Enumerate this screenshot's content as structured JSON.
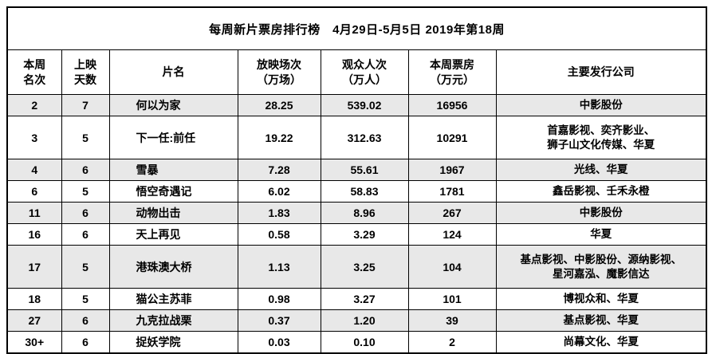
{
  "title": "每周新片票房排行榜　4月29日-5月5日 2019年第18周",
  "colors": {
    "background": "#ffffff",
    "shaded_row_bg": "#e8e8e8",
    "border": "#000000",
    "text": "#000000"
  },
  "columns": [
    {
      "label": "本周\n名次"
    },
    {
      "label": "上映\n天数"
    },
    {
      "label": "片名"
    },
    {
      "label": "放映场次\n（万场）"
    },
    {
      "label": "观众人次\n（万人）"
    },
    {
      "label": "本周票房\n（万元）"
    },
    {
      "label": "主要发行公司"
    }
  ],
  "table": {
    "rows": [
      {
        "rank": "2",
        "days": "7",
        "film": "何以为家",
        "screenings": "28.25",
        "audience": "539.02",
        "box_office": "16956",
        "distributors": "中影股份",
        "shaded": true,
        "tall": false
      },
      {
        "rank": "3",
        "days": "5",
        "film": "下一任:前任",
        "screenings": "19.22",
        "audience": "312.63",
        "box_office": "10291",
        "distributors": "首嘉影视、奕齐影业、\n狮子山文化传媒、华夏",
        "shaded": false,
        "tall": true
      },
      {
        "rank": "4",
        "days": "6",
        "film": "雪暴",
        "screenings": "7.28",
        "audience": "55.61",
        "box_office": "1967",
        "distributors": "光线、华夏",
        "shaded": true,
        "tall": false
      },
      {
        "rank": "6",
        "days": "5",
        "film": "悟空奇遇记",
        "screenings": "6.02",
        "audience": "58.83",
        "box_office": "1781",
        "distributors": "鑫岳影视、壬禾永橙",
        "shaded": false,
        "tall": false
      },
      {
        "rank": "11",
        "days": "6",
        "film": "动物出击",
        "screenings": "1.83",
        "audience": "8.96",
        "box_office": "267",
        "distributors": "中影股份",
        "shaded": true,
        "tall": false
      },
      {
        "rank": "16",
        "days": "6",
        "film": "天上再见",
        "screenings": "0.58",
        "audience": "3.29",
        "box_office": "124",
        "distributors": "华夏",
        "shaded": false,
        "tall": false
      },
      {
        "rank": "17",
        "days": "5",
        "film": "港珠澳大桥",
        "screenings": "1.13",
        "audience": "3.25",
        "box_office": "104",
        "distributors": "基点影视、中影股份、源纳影视、\n星河嘉泓、魔影信达",
        "shaded": true,
        "tall": true
      },
      {
        "rank": "18",
        "days": "5",
        "film": "猫公主苏菲",
        "screenings": "0.98",
        "audience": "3.27",
        "box_office": "101",
        "distributors": "博视众和、华夏",
        "shaded": false,
        "tall": false
      },
      {
        "rank": "27",
        "days": "6",
        "film": "九克拉战栗",
        "screenings": "0.37",
        "audience": "1.20",
        "box_office": "39",
        "distributors": "基点影视、华夏",
        "shaded": true,
        "tall": false
      },
      {
        "rank": "30+",
        "days": "6",
        "film": "捉妖学院",
        "screenings": "0.03",
        "audience": "0.10",
        "box_office": "2",
        "distributors": "尚幕文化、华夏",
        "shaded": false,
        "tall": false
      }
    ]
  },
  "chart_data": {
    "type": "table",
    "title": "每周新片票房排行榜 4月29日-5月5日 2019年第18周",
    "columns": [
      "本周名次",
      "上映天数",
      "片名",
      "放映场次（万场）",
      "观众人次（万人）",
      "本周票房（万元）",
      "主要发行公司"
    ],
    "rows": [
      [
        "2",
        "7",
        "何以为家",
        "28.25",
        "539.02",
        "16956",
        "中影股份"
      ],
      [
        "3",
        "5",
        "下一任:前任",
        "19.22",
        "312.63",
        "10291",
        "首嘉影视、奕齐影业、狮子山文化传媒、华夏"
      ],
      [
        "4",
        "6",
        "雪暴",
        "7.28",
        "55.61",
        "1967",
        "光线、华夏"
      ],
      [
        "6",
        "5",
        "悟空奇遇记",
        "6.02",
        "58.83",
        "1781",
        "鑫岳影视、壬禾永橙"
      ],
      [
        "11",
        "6",
        "动物出击",
        "1.83",
        "8.96",
        "267",
        "中影股份"
      ],
      [
        "16",
        "6",
        "天上再见",
        "0.58",
        "3.29",
        "124",
        "华夏"
      ],
      [
        "17",
        "5",
        "港珠澳大桥",
        "1.13",
        "3.25",
        "104",
        "基点影视、中影股份、源纳影视、星河嘉泓、魔影信达"
      ],
      [
        "18",
        "5",
        "猫公主苏菲",
        "0.98",
        "3.27",
        "101",
        "博视众和、华夏"
      ],
      [
        "27",
        "6",
        "九克拉战栗",
        "0.37",
        "1.20",
        "39",
        "基点影视、华夏"
      ],
      [
        "30+",
        "6",
        "捉妖学院",
        "0.03",
        "0.10",
        "2",
        "尚幕文化、华夏"
      ]
    ]
  }
}
